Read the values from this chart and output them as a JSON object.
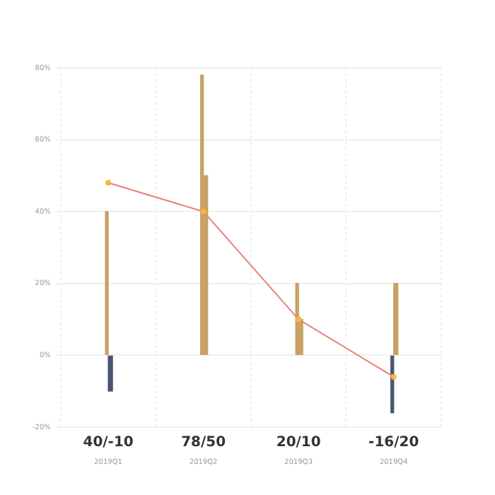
{
  "chart_data": {
    "type": "bar",
    "categories": [
      "40/-10\n2019Q1",
      "78/50\n2019Q2",
      "20/10\n2019Q3",
      "-16/20\n2019Q4"
    ],
    "series": [
      {
        "colors": [
          "#c9a264",
          "#c9a264",
          "#c9a264",
          "#4b5573"
        ],
        "values": [
          40,
          78,
          20,
          -16
        ]
      },
      {
        "colors": [
          "#4b5573",
          "#c9a264",
          "#c9a264",
          "#c9a264"
        ],
        "values": [
          -10,
          50,
          10,
          20
        ]
      },
      {
        "type": "line",
        "color": "#e8807a",
        "values": [
          48,
          40,
          10,
          -6
        ]
      }
    ],
    "ylim": [
      -20,
      80
    ],
    "yticks": [
      {
        "value": -20,
        "label": "-20%"
      },
      {
        "value": 0,
        "label": "0%"
      },
      {
        "value": 20,
        "label": "20%"
      },
      {
        "value": 40,
        "label": "40%"
      },
      {
        "value": 60,
        "label": "60%"
      },
      {
        "value": 80,
        "label": "80%"
      }
    ],
    "grid": true,
    "legend": false,
    "marker": "circle",
    "line_style": "solid"
  }
}
